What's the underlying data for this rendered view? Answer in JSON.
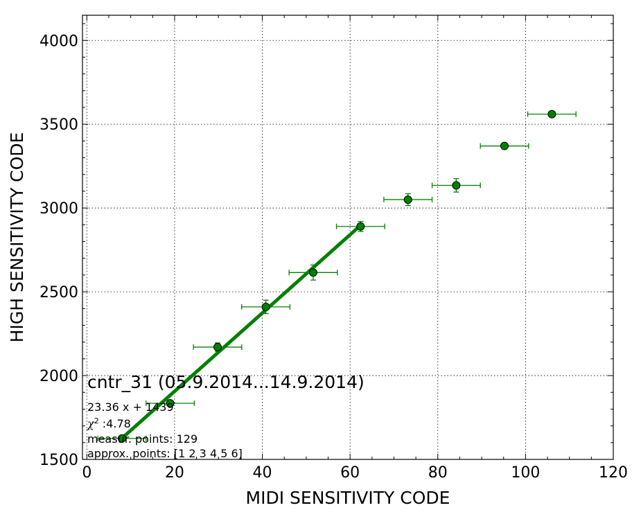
{
  "chart_data": {
    "type": "scatter",
    "xlabel": "MIDI SENSITIVITY CODE",
    "ylabel": "HIGH SENSITIVITY CODE",
    "xlim": [
      -1,
      120
    ],
    "ylim": [
      1500,
      4150
    ],
    "x_ticks": [
      "0",
      "20",
      "40",
      "60",
      "80",
      "100",
      "120"
    ],
    "y_ticks": [
      "1500",
      "2000",
      "2500",
      "3000",
      "3500",
      "4000"
    ],
    "grid": true,
    "colors": {
      "points": "#008000",
      "fit_line": "#008000",
      "errorbar": "#008000"
    },
    "points": [
      {
        "x": 8.0,
        "y": 1625,
        "xerr": 5.5,
        "yerr": 12
      },
      {
        "x": 19.0,
        "y": 1835,
        "xerr": 5.5,
        "yerr": 12
      },
      {
        "x": 29.8,
        "y": 2170,
        "xerr": 5.5,
        "yerr": 25
      },
      {
        "x": 40.8,
        "y": 2410,
        "xerr": 5.5,
        "yerr": 40
      },
      {
        "x": 51.6,
        "y": 2615,
        "xerr": 5.5,
        "yerr": 45
      },
      {
        "x": 62.4,
        "y": 2890,
        "xerr": 5.5,
        "yerr": 30
      },
      {
        "x": 73.2,
        "y": 3050,
        "xerr": 5.5,
        "yerr": 35
      },
      {
        "x": 84.2,
        "y": 3135,
        "xerr": 5.5,
        "yerr": 40
      },
      {
        "x": 95.2,
        "y": 3370,
        "xerr": 5.5,
        "yerr": 15
      },
      {
        "x": 106.0,
        "y": 3560,
        "xerr": 5.5,
        "yerr": 15
      }
    ],
    "fit": {
      "slope": 23.36,
      "intercept": 1439,
      "x_from": 8.0,
      "x_to": 62.4
    },
    "annotations": {
      "title": "cntr_31 (05.9.2014...14.9.2014)",
      "equation": "23.36 x + 1439",
      "chi_symbol": "χ",
      "chi_sup": "2",
      "chi_value": " :4.78",
      "measur_points": "measur. points: 129",
      "approx_points": "approx. points: [1 2 3 4 5 6]"
    }
  }
}
